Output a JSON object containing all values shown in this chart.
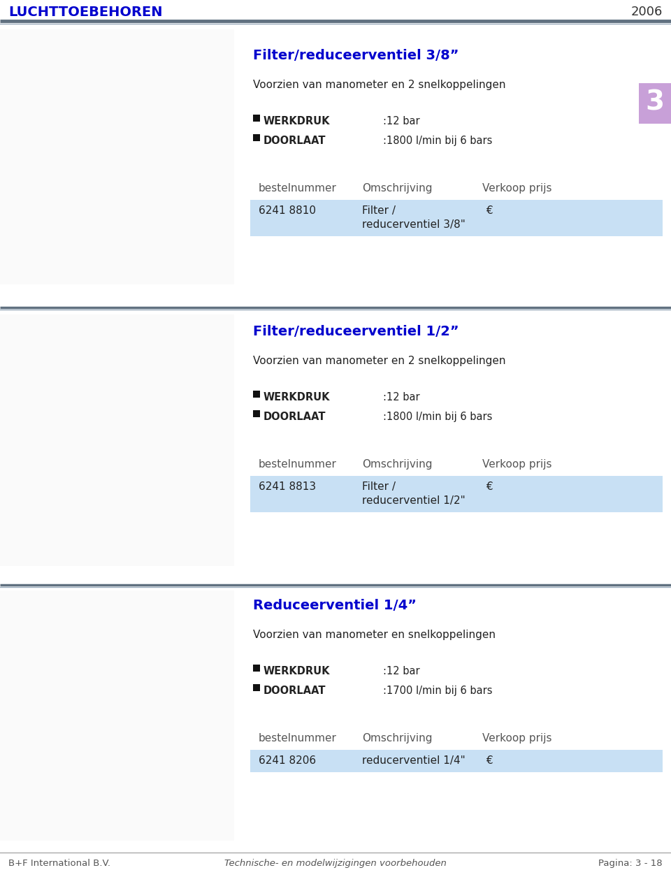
{
  "header_title": "LUCHTTOEBEHOREN",
  "header_year": "2006",
  "header_title_color": "#0000CD",
  "header_year_color": "#333333",
  "header_line_color": "#607080",
  "bg_color": "#FFFFFF",
  "footer_left": "B+F International B.V.",
  "footer_center": "Technische- en modelwijzigingen voorbehouden",
  "footer_right": "Pagina: 3 - 18",
  "footer_color": "#555555",
  "section_number_bg": "#C8A0D8",
  "section_number_color": "#FFFFFF",
  "section_number": "3",
  "products": [
    {
      "title": "Filter/reduceerventiel 3/8”",
      "subtitle": "Voorzien van manometer en 2 snelkoppelingen",
      "werkdruk": ":12 bar",
      "doorlaat": ":1800 l/min bij 6 bars",
      "bestelnummer": "6241 8810",
      "omschrijving_line1": "Filter /",
      "omschrijving_line2": "reducerventiel 3/8\"",
      "has_euro": true
    },
    {
      "title": "Filter/reduceerventiel 1/2”",
      "subtitle": "Voorzien van manometer en 2 snelkoppelingen",
      "werkdruk": ":12 bar",
      "doorlaat": ":1800 l/min bij 6 bars",
      "bestelnummer": "6241 8813",
      "omschrijving_line1": "Filter /",
      "omschrijving_line2": "reducerventiel 1/2\"",
      "has_euro": true
    },
    {
      "title": "Reduceerventiel 1/4”",
      "subtitle": "Voorzien van manometer en snelkoppelingen",
      "werkdruk": ":12 bar",
      "doorlaat": ":1700 l/min bij 6 bars",
      "bestelnummer": "6241 8206",
      "omschrijving_line1": "reducerventiel 1/4\"",
      "omschrijving_line2": "",
      "has_euro": true
    }
  ],
  "table_row_bg": "#C8E0F4",
  "table_header_color": "#555555",
  "title_color": "#0000CD",
  "text_color": "#222222",
  "bullet_color": "#111111",
  "divider_color": "#AAAAAA",
  "divider_color2": "#607080"
}
